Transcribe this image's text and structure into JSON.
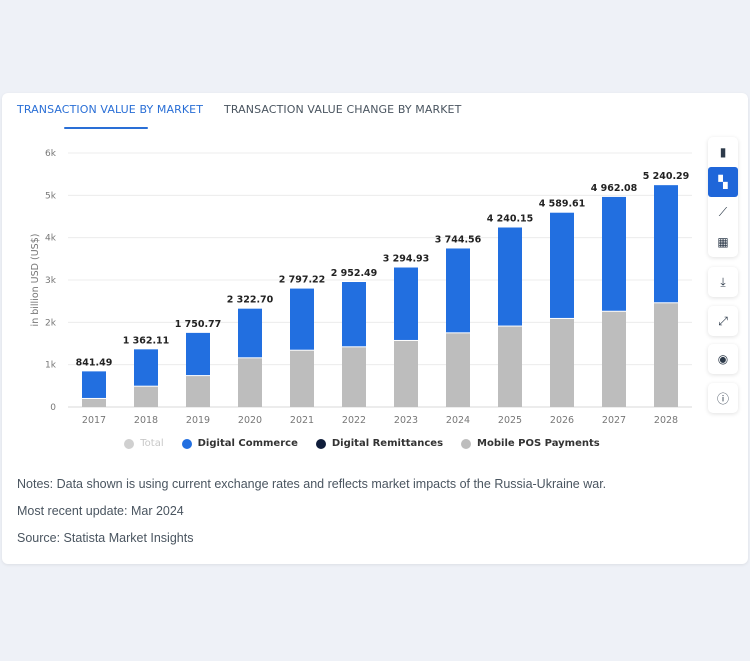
{
  "tabs": [
    "TRANSACTION VALUE BY MARKET",
    "TRANSACTION VALUE CHANGE BY MARKET"
  ],
  "colors": {
    "digital_commerce": "#226fe0",
    "digital_remittances": "#0f1d3a",
    "mobile_pos": "#bdbdbd",
    "total": "#d0d0d0",
    "accent": "#2a6fd6"
  },
  "chart_data": {
    "type": "bar",
    "stacked": true,
    "ylabel": "in billion USD (US$)",
    "ylim": [
      0,
      6000
    ],
    "yticks": [
      "0",
      "1k",
      "2k",
      "3k",
      "4k",
      "5k",
      "6k"
    ],
    "grid": true,
    "legend_placement": "bottom",
    "categories": [
      "2017",
      "2018",
      "2019",
      "2020",
      "2021",
      "2022",
      "2023",
      "2024",
      "2025",
      "2026",
      "2027",
      "2028"
    ],
    "totals": [
      841.49,
      1362.11,
      1750.77,
      2322.7,
      2797.22,
      2952.49,
      3294.93,
      3744.56,
      4240.15,
      4589.61,
      4962.08,
      5240.29
    ],
    "total_labels": [
      "841.49",
      "1 362.11",
      "1 750.77",
      "2 322.70",
      "2 797.22",
      "2 952.49",
      "3 294.93",
      "3 744.56",
      "4 240.15",
      "4 589.61",
      "4 962.08",
      "5 240.29"
    ],
    "series": [
      {
        "name": "Mobile POS Payments",
        "values": [
          190,
          480,
          730,
          1150,
          1330,
          1410,
          1560,
          1740,
          1900,
          2080,
          2250,
          2450
        ]
      },
      {
        "name": "Digital Commerce",
        "values": [
          651.49,
          882.11,
          1020.77,
          1172.7,
          1467.22,
          1542.49,
          1734.93,
          2004.56,
          2340.15,
          2509.61,
          2712.08,
          2790.29
        ]
      }
    ],
    "legend": [
      {
        "name": "Total",
        "color": "#d0d0d0",
        "disabled": true
      },
      {
        "name": "Digital Commerce",
        "color": "#226fe0"
      },
      {
        "name": "Digital Remittances",
        "color": "#0f1d3a"
      },
      {
        "name": "Mobile POS Payments",
        "color": "#bdbdbd"
      }
    ]
  },
  "notes": {
    "note": "Notes: Data shown is using current exchange rates and reflects market impacts of the Russia-Ukraine war.",
    "update": "Most recent update: Mar 2024",
    "source": "Source: Statista Market Insights"
  },
  "toolbar_icons": [
    "bar-chart-icon",
    "stacked-bar-icon",
    "line-chart-icon",
    "table-icon",
    "download-icon",
    "expand-icon",
    "eye-icon",
    "info-icon"
  ]
}
